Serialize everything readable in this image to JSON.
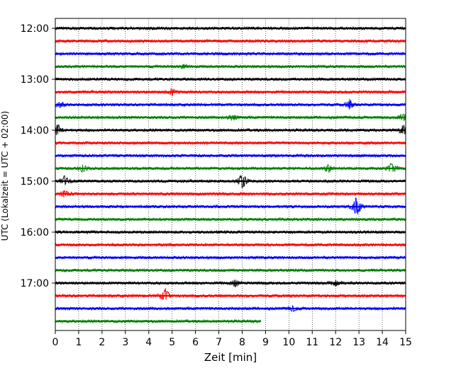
{
  "chart_data": {
    "type": "line",
    "xlabel": "Zeit  [min]",
    "ylabel": "UTC (Lokalzeit = UTC + 02:00)",
    "xlim": [
      0,
      15
    ],
    "x_ticks": [
      "0",
      "1",
      "2",
      "3",
      "4",
      "5",
      "6",
      "7",
      "8",
      "9",
      "10",
      "11",
      "12",
      "13",
      "14",
      "15"
    ],
    "y_ticks": [
      "12:00",
      "13:00",
      "14:00",
      "15:00",
      "16:00",
      "17:00"
    ],
    "grid": "vertical dotted",
    "trace_colors": [
      "#000000",
      "#ff0000",
      "#0000ff",
      "#008000"
    ],
    "trace_interval_min": 15,
    "traces": [
      {
        "start": "12:00",
        "end_min": 15,
        "events": []
      },
      {
        "start": "12:15",
        "end_min": 15,
        "events": []
      },
      {
        "start": "12:30",
        "end_min": 15,
        "events": []
      },
      {
        "start": "12:45",
        "end_min": 15,
        "events": [
          {
            "t": 5.5,
            "amp": 0.3
          }
        ]
      },
      {
        "start": "13:00",
        "end_min": 15,
        "events": []
      },
      {
        "start": "13:15",
        "end_min": 15,
        "events": [
          {
            "t": 5.0,
            "amp": 0.4
          }
        ]
      },
      {
        "start": "13:30",
        "end_min": 15,
        "events": [
          {
            "t": 0.2,
            "amp": 0.35
          },
          {
            "t": 12.6,
            "amp": 0.6
          }
        ]
      },
      {
        "start": "13:45",
        "end_min": 15,
        "events": [
          {
            "t": 7.6,
            "amp": 0.35
          },
          {
            "t": 14.9,
            "amp": 0.5
          }
        ]
      },
      {
        "start": "14:00",
        "end_min": 15,
        "events": [
          {
            "t": 0.1,
            "amp": 0.7
          },
          {
            "t": 14.9,
            "amp": 0.6
          }
        ]
      },
      {
        "start": "14:15",
        "end_min": 15,
        "events": []
      },
      {
        "start": "14:30",
        "end_min": 15,
        "events": []
      },
      {
        "start": "14:45",
        "end_min": 15,
        "events": [
          {
            "t": 1.2,
            "amp": 0.45
          },
          {
            "t": 11.7,
            "amp": 0.45
          },
          {
            "t": 14.4,
            "amp": 0.7
          }
        ]
      },
      {
        "start": "15:00",
        "end_min": 15,
        "events": [
          {
            "t": 0.4,
            "amp": 0.6
          },
          {
            "t": 8.0,
            "amp": 1.2
          }
        ]
      },
      {
        "start": "15:15",
        "end_min": 15,
        "events": [
          {
            "t": 0.4,
            "amp": 0.45
          }
        ]
      },
      {
        "start": "15:30",
        "end_min": 15,
        "events": [
          {
            "t": 12.9,
            "amp": 1.3
          }
        ]
      },
      {
        "start": "15:45",
        "end_min": 15,
        "events": []
      },
      {
        "start": "16:00",
        "end_min": 15,
        "events": []
      },
      {
        "start": "16:15",
        "end_min": 15,
        "events": []
      },
      {
        "start": "16:30",
        "end_min": 15,
        "events": []
      },
      {
        "start": "16:45",
        "end_min": 15,
        "events": []
      },
      {
        "start": "17:00",
        "end_min": 15,
        "events": [
          {
            "t": 7.7,
            "amp": 0.45
          },
          {
            "t": 12.0,
            "amp": 0.3
          }
        ]
      },
      {
        "start": "17:15",
        "end_min": 15,
        "events": [
          {
            "t": 4.7,
            "amp": 1.0
          }
        ]
      },
      {
        "start": "17:30",
        "end_min": 15,
        "events": [
          {
            "t": 10.2,
            "amp": 0.35
          }
        ]
      },
      {
        "start": "17:45",
        "end_min": 8.8,
        "events": []
      }
    ]
  }
}
